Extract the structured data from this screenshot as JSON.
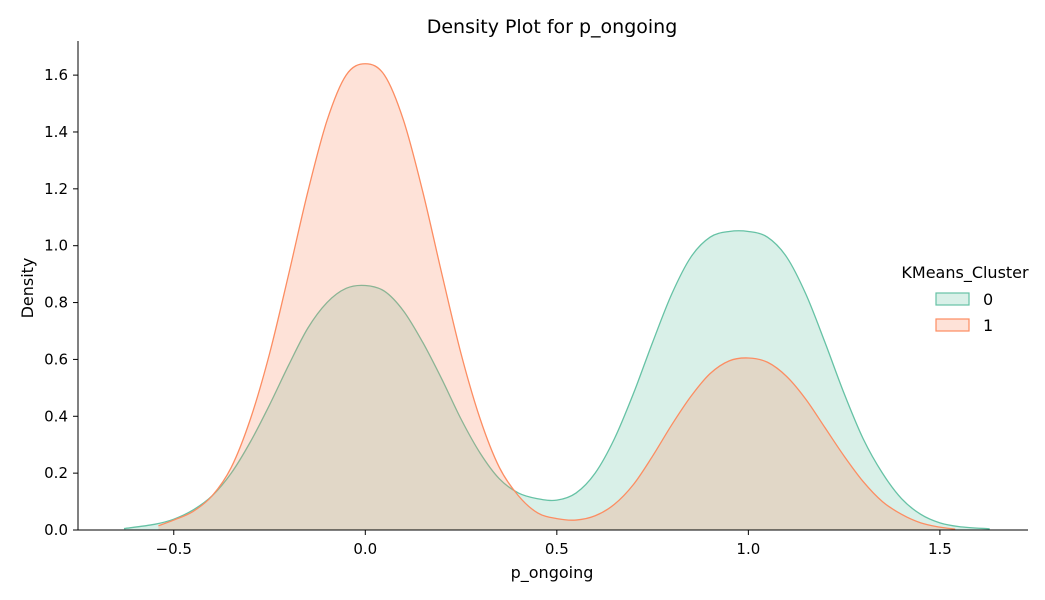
{
  "chart_data": {
    "type": "area",
    "title": "Density Plot for p_ongoing",
    "xlabel": "p_ongoing",
    "ylabel": "Density",
    "xlim": [
      -0.75,
      1.73
    ],
    "ylim": [
      0,
      1.72
    ],
    "xticks": [
      -0.5,
      0.0,
      0.5,
      1.0,
      1.5
    ],
    "xtick_labels": [
      "−0.5",
      "0.0",
      "0.5",
      "1.0",
      "1.5"
    ],
    "yticks": [
      0.0,
      0.2,
      0.4,
      0.6,
      0.8,
      1.0,
      1.2,
      1.4,
      1.6
    ],
    "ytick_labels": [
      "0.0",
      "0.2",
      "0.4",
      "0.6",
      "0.8",
      "1.0",
      "1.2",
      "1.4",
      "1.6"
    ],
    "grid": false,
    "legend": {
      "title": "KMeans_Cluster",
      "position": "center-right"
    },
    "series": [
      {
        "name": "0",
        "color": "#66c2a5",
        "x": [
          -0.63,
          -0.55,
          -0.5,
          -0.45,
          -0.4,
          -0.35,
          -0.3,
          -0.25,
          -0.2,
          -0.15,
          -0.1,
          -0.05,
          0.0,
          0.05,
          0.1,
          0.15,
          0.2,
          0.25,
          0.3,
          0.35,
          0.4,
          0.45,
          0.5,
          0.55,
          0.6,
          0.65,
          0.7,
          0.75,
          0.8,
          0.85,
          0.9,
          0.95,
          1.0,
          1.05,
          1.1,
          1.15,
          1.2,
          1.25,
          1.3,
          1.35,
          1.4,
          1.45,
          1.5,
          1.55,
          1.63
        ],
        "y": [
          0.005,
          0.02,
          0.038,
          0.07,
          0.12,
          0.2,
          0.31,
          0.44,
          0.58,
          0.71,
          0.8,
          0.85,
          0.86,
          0.84,
          0.77,
          0.66,
          0.53,
          0.39,
          0.27,
          0.18,
          0.13,
          0.11,
          0.105,
          0.13,
          0.2,
          0.32,
          0.48,
          0.66,
          0.83,
          0.96,
          1.03,
          1.05,
          1.05,
          1.03,
          0.96,
          0.83,
          0.66,
          0.48,
          0.32,
          0.2,
          0.11,
          0.055,
          0.025,
          0.012,
          0.004
        ]
      },
      {
        "name": "1",
        "color": "#fc8d62",
        "x": [
          -0.54,
          -0.5,
          -0.45,
          -0.4,
          -0.35,
          -0.3,
          -0.25,
          -0.2,
          -0.15,
          -0.1,
          -0.05,
          0.0,
          0.05,
          0.1,
          0.15,
          0.2,
          0.25,
          0.3,
          0.35,
          0.4,
          0.45,
          0.5,
          0.55,
          0.6,
          0.65,
          0.7,
          0.75,
          0.8,
          0.85,
          0.9,
          0.95,
          1.0,
          1.05,
          1.1,
          1.15,
          1.2,
          1.25,
          1.3,
          1.35,
          1.4,
          1.45,
          1.5,
          1.54
        ],
        "y": [
          0.015,
          0.035,
          0.065,
          0.12,
          0.22,
          0.39,
          0.62,
          0.9,
          1.19,
          1.44,
          1.6,
          1.64,
          1.6,
          1.44,
          1.19,
          0.9,
          0.62,
          0.39,
          0.22,
          0.12,
          0.06,
          0.04,
          0.035,
          0.05,
          0.09,
          0.16,
          0.26,
          0.37,
          0.47,
          0.55,
          0.595,
          0.605,
          0.59,
          0.54,
          0.46,
          0.36,
          0.26,
          0.17,
          0.1,
          0.055,
          0.025,
          0.01,
          0.003
        ]
      }
    ]
  }
}
